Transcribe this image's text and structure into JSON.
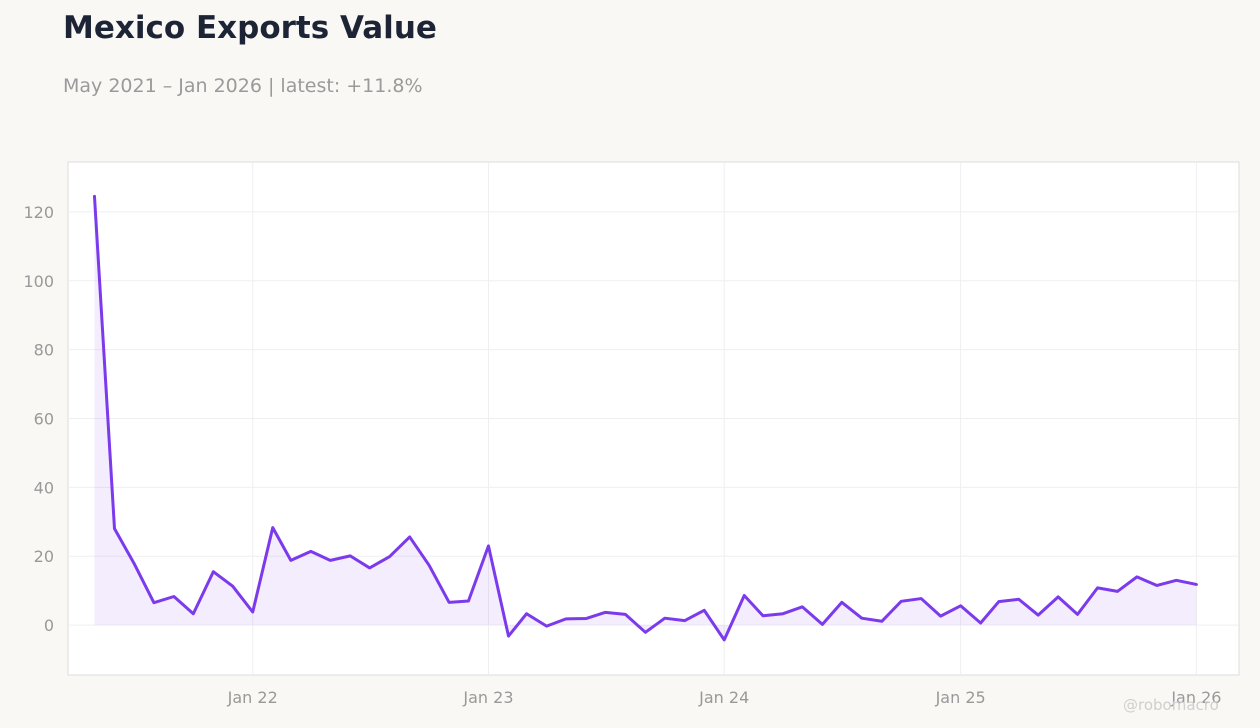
{
  "header": {
    "title": "Mexico Exports Value",
    "subtitle": "May 2021 – Jan 2026 | latest: +11.8%"
  },
  "watermark": "@robomacro",
  "colors": {
    "line": "#7c3aed",
    "fill": "#7c3aed",
    "grid": "#efefef",
    "frame": "#dddddd",
    "background": "#f9f8f5",
    "plot_background": "#ffffff"
  },
  "chart_data": {
    "type": "area",
    "title": "Mexico Exports Value",
    "subtitle": "May 2021 – Jan 2026 | latest: +11.8%",
    "xlabel": "",
    "ylabel": "",
    "grid": true,
    "legend": "none",
    "ylim": [
      -14.5,
      134.5
    ],
    "xlim": [
      "2021-03-21",
      "2026-03-08"
    ],
    "x_ticks": [
      {
        "date": "2022-01-01",
        "label": "Jan 22"
      },
      {
        "date": "2023-01-01",
        "label": "Jan 23"
      },
      {
        "date": "2024-01-01",
        "label": "Jan 24"
      },
      {
        "date": "2025-01-01",
        "label": "Jan 25"
      },
      {
        "date": "2026-01-01",
        "label": "Jan 26"
      }
    ],
    "y_ticks": [
      0,
      20,
      40,
      60,
      80,
      100,
      120
    ],
    "series": [
      {
        "x": [
          "2021-05",
          "2021-06",
          "2021-07",
          "2021-08",
          "2021-09",
          "2021-10",
          "2021-11",
          "2021-12",
          "2022-01",
          "2022-02",
          "2022-03",
          "2022-04",
          "2022-05",
          "2022-06",
          "2022-07",
          "2022-08",
          "2022-09",
          "2022-10",
          "2022-11",
          "2022-12",
          "2023-01",
          "2023-02",
          "2023-03",
          "2023-04",
          "2023-05",
          "2023-06",
          "2023-07",
          "2023-08",
          "2023-09",
          "2023-10",
          "2023-11",
          "2023-12",
          "2024-01",
          "2024-02",
          "2024-03",
          "2024-04",
          "2024-05",
          "2024-06",
          "2024-07",
          "2024-08",
          "2024-09",
          "2024-10",
          "2024-11",
          "2024-12",
          "2025-01",
          "2025-02",
          "2025-03",
          "2025-04",
          "2025-05",
          "2025-06",
          "2025-07",
          "2025-08",
          "2025-09",
          "2025-10",
          "2025-11",
          "2025-12",
          "2026-01"
        ],
        "values": [
          124.5,
          28.0,
          18.0,
          6.5,
          8.3,
          3.3,
          15.5,
          11.3,
          3.8,
          28.3,
          18.8,
          21.4,
          18.8,
          20.1,
          16.6,
          19.9,
          25.6,
          17.4,
          6.6,
          7.0,
          23.0,
          -3.2,
          3.3,
          -0.3,
          1.8,
          1.9,
          3.7,
          3.1,
          -2.1,
          2.0,
          1.3,
          4.3,
          -4.3,
          8.6,
          2.7,
          3.3,
          5.3,
          0.2,
          6.6,
          2.0,
          1.1,
          6.9,
          7.7,
          2.6,
          5.6,
          0.6,
          6.8,
          7.5,
          2.9,
          8.2,
          3.1,
          10.8,
          9.8,
          14.0,
          11.5,
          13.0,
          11.8
        ]
      }
    ]
  }
}
